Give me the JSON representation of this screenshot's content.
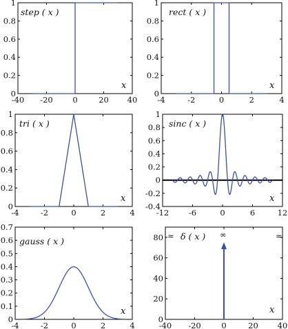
{
  "chart_data": [
    {
      "type": "line",
      "label": "step ( x )",
      "xlabel": "x",
      "xlim": [
        -40,
        40
      ],
      "ylim": [
        0,
        1
      ],
      "xticks": [
        -40,
        -20,
        0,
        20,
        40
      ],
      "xtick_labels": [
        "-40",
        "-20",
        "0",
        "20",
        "40"
      ],
      "yticks": [
        0,
        0.2,
        0.4,
        0.6,
        0.8,
        1
      ],
      "ytick_labels": [
        "0",
        "0.2",
        "0.4",
        "0.6",
        "0.8",
        "1"
      ],
      "series": [
        {
          "x": [
            -30,
            0,
            0,
            30
          ],
          "y": [
            0,
            0,
            1,
            1
          ]
        }
      ]
    },
    {
      "type": "line",
      "label": "rect ( x )",
      "xlabel": "x",
      "xlim": [
        -4,
        4
      ],
      "ylim": [
        0,
        1
      ],
      "xticks": [
        -4,
        -2,
        0,
        2,
        4
      ],
      "xtick_labels": [
        "-4",
        "-2",
        "0",
        "2",
        "4"
      ],
      "yticks": [
        0,
        0.2,
        0.4,
        0.6,
        0.8,
        1
      ],
      "ytick_labels": [
        "0",
        "0.2",
        "0.4",
        "0.6",
        "0.8",
        "1"
      ],
      "series": [
        {
          "x": [
            -3,
            -0.5,
            -0.5,
            0.5,
            0.5,
            3
          ],
          "y": [
            0,
            0,
            1,
            1,
            0,
            0
          ]
        }
      ]
    },
    {
      "type": "line",
      "label": "tri ( x )",
      "xlabel": "x",
      "xlim": [
        -4,
        4
      ],
      "ylim": [
        0,
        1
      ],
      "xticks": [
        -4,
        -2,
        0,
        2,
        4
      ],
      "xtick_labels": [
        "-4",
        "-2",
        "0",
        "2",
        "4"
      ],
      "yticks": [
        0,
        0.2,
        0.4,
        0.6,
        0.8,
        1
      ],
      "ytick_labels": [
        "0",
        "0.2",
        "0.4",
        "0.6",
        "0.8",
        "1"
      ],
      "series": [
        {
          "x": [
            -3,
            -1,
            0,
            1,
            3
          ],
          "y": [
            0,
            0,
            1,
            0,
            0
          ]
        }
      ]
    },
    {
      "type": "line",
      "label": "sinc ( x )",
      "xlabel": "x",
      "xlim": [
        -12,
        12
      ],
      "ylim": [
        -0.4,
        1
      ],
      "xticks": [
        -12,
        -6,
        0,
        6,
        12
      ],
      "xtick_labels": [
        "-12",
        "-6",
        "0",
        "6",
        "12"
      ],
      "yticks": [
        -0.4,
        -0.2,
        0,
        0.2,
        0.4,
        0.6,
        0.8,
        1
      ],
      "ytick_labels": [
        "-0.4",
        "-0.2",
        "0",
        "0.2",
        "0.4",
        "0.6",
        "0.8",
        "1"
      ],
      "zero_line": true,
      "series": [
        {
          "function": "sin(pi*x)/(pi*x)",
          "x_range": [
            -10,
            10
          ]
        }
      ]
    },
    {
      "type": "line",
      "label": "gauss ( x )",
      "xlabel": "x",
      "xlim": [
        -4,
        4
      ],
      "ylim": [
        0,
        0.7
      ],
      "xticks": [
        -4,
        -2,
        0,
        2,
        4
      ],
      "xtick_labels": [
        "-4",
        "-2",
        "0",
        "2",
        "4"
      ],
      "yticks": [
        0,
        0.1,
        0.2,
        0.3,
        0.4,
        0.5,
        0.6,
        0.7
      ],
      "ytick_labels": [
        "0",
        "0.1",
        "0.2",
        "0.3",
        "0.4",
        "0.5",
        "0.6",
        "0.7"
      ],
      "series": [
        {
          "function": "exp(-x^2/2)/sqrt(2*pi)",
          "x_range": [
            -3.5,
            3.5
          ]
        }
      ]
    },
    {
      "type": "line",
      "label": "δ ( x )",
      "xlabel": "x",
      "xlim": [
        -40,
        40
      ],
      "ylim": [
        0,
        90
      ],
      "xticks": [
        -40,
        -20,
        0,
        20,
        40
      ],
      "xtick_labels": [
        "-40",
        "-20",
        "0",
        "20",
        "40"
      ],
      "yticks": [
        0,
        20,
        40,
        60,
        80
      ],
      "ytick_labels": [
        "0",
        "20",
        "40",
        "60",
        "80"
      ],
      "impulse_x": 0,
      "top_labels": [
        "≈",
        "∞",
        "≈"
      ]
    }
  ]
}
